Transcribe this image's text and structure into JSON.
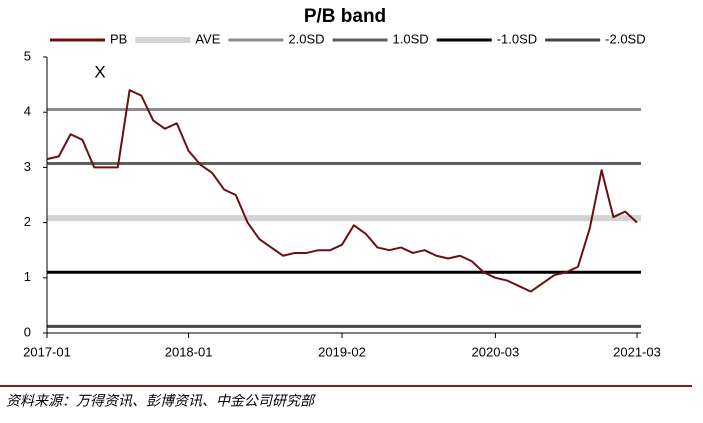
{
  "chart_data": {
    "type": "line",
    "title": "P/B band",
    "annotation": "X",
    "source": "资料来源：万得资讯、彭博资讯、中金公司研究部",
    "x": [
      "2017-01",
      "2017-02",
      "2017-03",
      "2017-04",
      "2017-05",
      "2017-06",
      "2017-07",
      "2017-08",
      "2017-09",
      "2017-10",
      "2017-11",
      "2017-12",
      "2018-01",
      "2018-02",
      "2018-03",
      "2018-04",
      "2018-05",
      "2018-06",
      "2018-07",
      "2018-08",
      "2018-09",
      "2018-10",
      "2018-11",
      "2018-12",
      "2019-01",
      "2019-02",
      "2019-03",
      "2019-04",
      "2019-05",
      "2019-06",
      "2019-07",
      "2019-08",
      "2019-09",
      "2019-10",
      "2019-11",
      "2019-12",
      "2020-01",
      "2020-02",
      "2020-03",
      "2020-04",
      "2020-05",
      "2020-06",
      "2020-07",
      "2020-08",
      "2020-09",
      "2020-10",
      "2020-11",
      "2020-12",
      "2021-01",
      "2021-02",
      "2021-03"
    ],
    "series": [
      {
        "name": "PB",
        "color": "#6b1012",
        "values": [
          3.15,
          3.2,
          3.6,
          3.5,
          3.0,
          3.0,
          3.0,
          4.4,
          4.3,
          3.85,
          3.7,
          3.8,
          3.3,
          3.05,
          2.9,
          2.6,
          2.5,
          2.0,
          1.7,
          1.55,
          1.4,
          1.45,
          1.45,
          1.5,
          1.5,
          1.6,
          1.95,
          1.8,
          1.55,
          1.5,
          1.55,
          1.45,
          1.5,
          1.4,
          1.35,
          1.4,
          1.3,
          1.1,
          1.0,
          0.95,
          0.85,
          0.75,
          0.9,
          1.05,
          1.1,
          1.2,
          1.9,
          2.95,
          2.1,
          2.2,
          2.0
        ]
      }
    ],
    "reference_lines": [
      {
        "name": "AVE",
        "value": 2.08,
        "color": "#d3d3d3"
      },
      {
        "name": "2.0SD",
        "value": 4.05,
        "color": "#8c8c8c"
      },
      {
        "name": "1.0SD",
        "value": 3.07,
        "color": "#5f5f5f"
      },
      {
        "name": "-1.0SD",
        "value": 1.1,
        "color": "#000000"
      },
      {
        "name": "-2.0SD",
        "value": 0.12,
        "color": "#444444"
      }
    ],
    "xlim": [
      "2017-01",
      "2021-03"
    ],
    "xticks": [
      "2017-01",
      "2018-01",
      "2019-02",
      "2020-03",
      "2021-03"
    ],
    "ylim": [
      0,
      5
    ],
    "yticks": [
      0,
      1,
      2,
      3,
      4,
      5
    ]
  }
}
